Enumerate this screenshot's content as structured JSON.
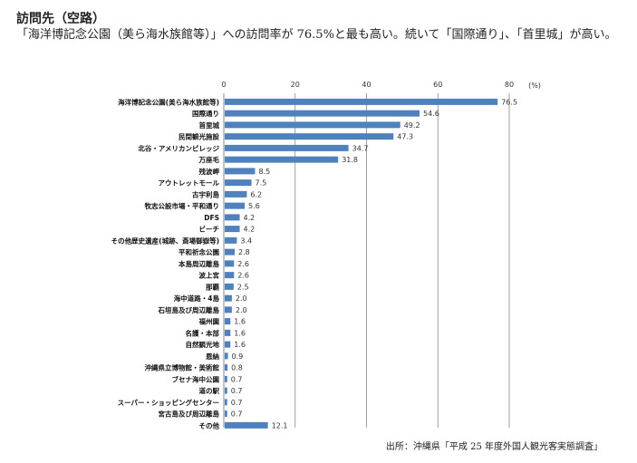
{
  "heading": "訪問先（空路）",
  "description": "「海洋博記念公園（美ら海水族館等）」への訪問率が 76.5%と最も高い。続いて「国際通り」、「首里城」が高い。",
  "source": "出所：沖縄県「平成 25 年度外国人観光客実態調査」",
  "chart_data": {
    "type": "bar",
    "orientation": "horizontal",
    "unit_label": "(%)",
    "xlim": [
      0,
      80
    ],
    "xticks": [
      0,
      20,
      40,
      60,
      80
    ],
    "grid": true,
    "bar_color": "#4f81bd",
    "categories": [
      "海洋博記念公園(美ら海水族館等)",
      "国際通り",
      "首里城",
      "民間観光施設",
      "北谷・アメリカンビレッジ",
      "万座毛",
      "残波岬",
      "アウトレットモール",
      "古宇利島",
      "牧志公設市場・平和通り",
      "DFS",
      "ビーチ",
      "その他歴史遺産(城跡、斎場御嶽等)",
      "平和祈念公園",
      "本島周辺離島",
      "波上宮",
      "那覇",
      "海中道路・4島",
      "石垣島及び周辺離島",
      "福州園",
      "名護・本部",
      "自然観光地",
      "恩納",
      "沖縄県立博物館・美術館",
      "ブセナ海中公園",
      "道の駅",
      "スーパー・ショッピングセンター",
      "宮古島及び周辺離島",
      "その他"
    ],
    "values": [
      76.5,
      54.6,
      49.2,
      47.3,
      34.7,
      31.8,
      8.5,
      7.5,
      6.2,
      5.6,
      4.2,
      4.2,
      3.4,
      2.8,
      2.6,
      2.6,
      2.5,
      2.0,
      2.0,
      1.6,
      1.6,
      1.6,
      0.9,
      0.8,
      0.7,
      0.7,
      0.7,
      0.7,
      12.1
    ],
    "value_labels": [
      "76.5",
      "54.6",
      "49.2",
      "47.3",
      "34.7",
      "31.8",
      "8.5",
      "7.5",
      "6.2",
      "5.6",
      "4.2",
      "4.2",
      "3.4",
      "2.8",
      "2.6",
      "2.6",
      "2.5",
      "2.0",
      "2.0",
      "1.6",
      "1.6",
      "1.6",
      "0.9",
      "0.8",
      "0.7",
      "0.7",
      "0.7",
      "0.7",
      "12.1"
    ]
  }
}
